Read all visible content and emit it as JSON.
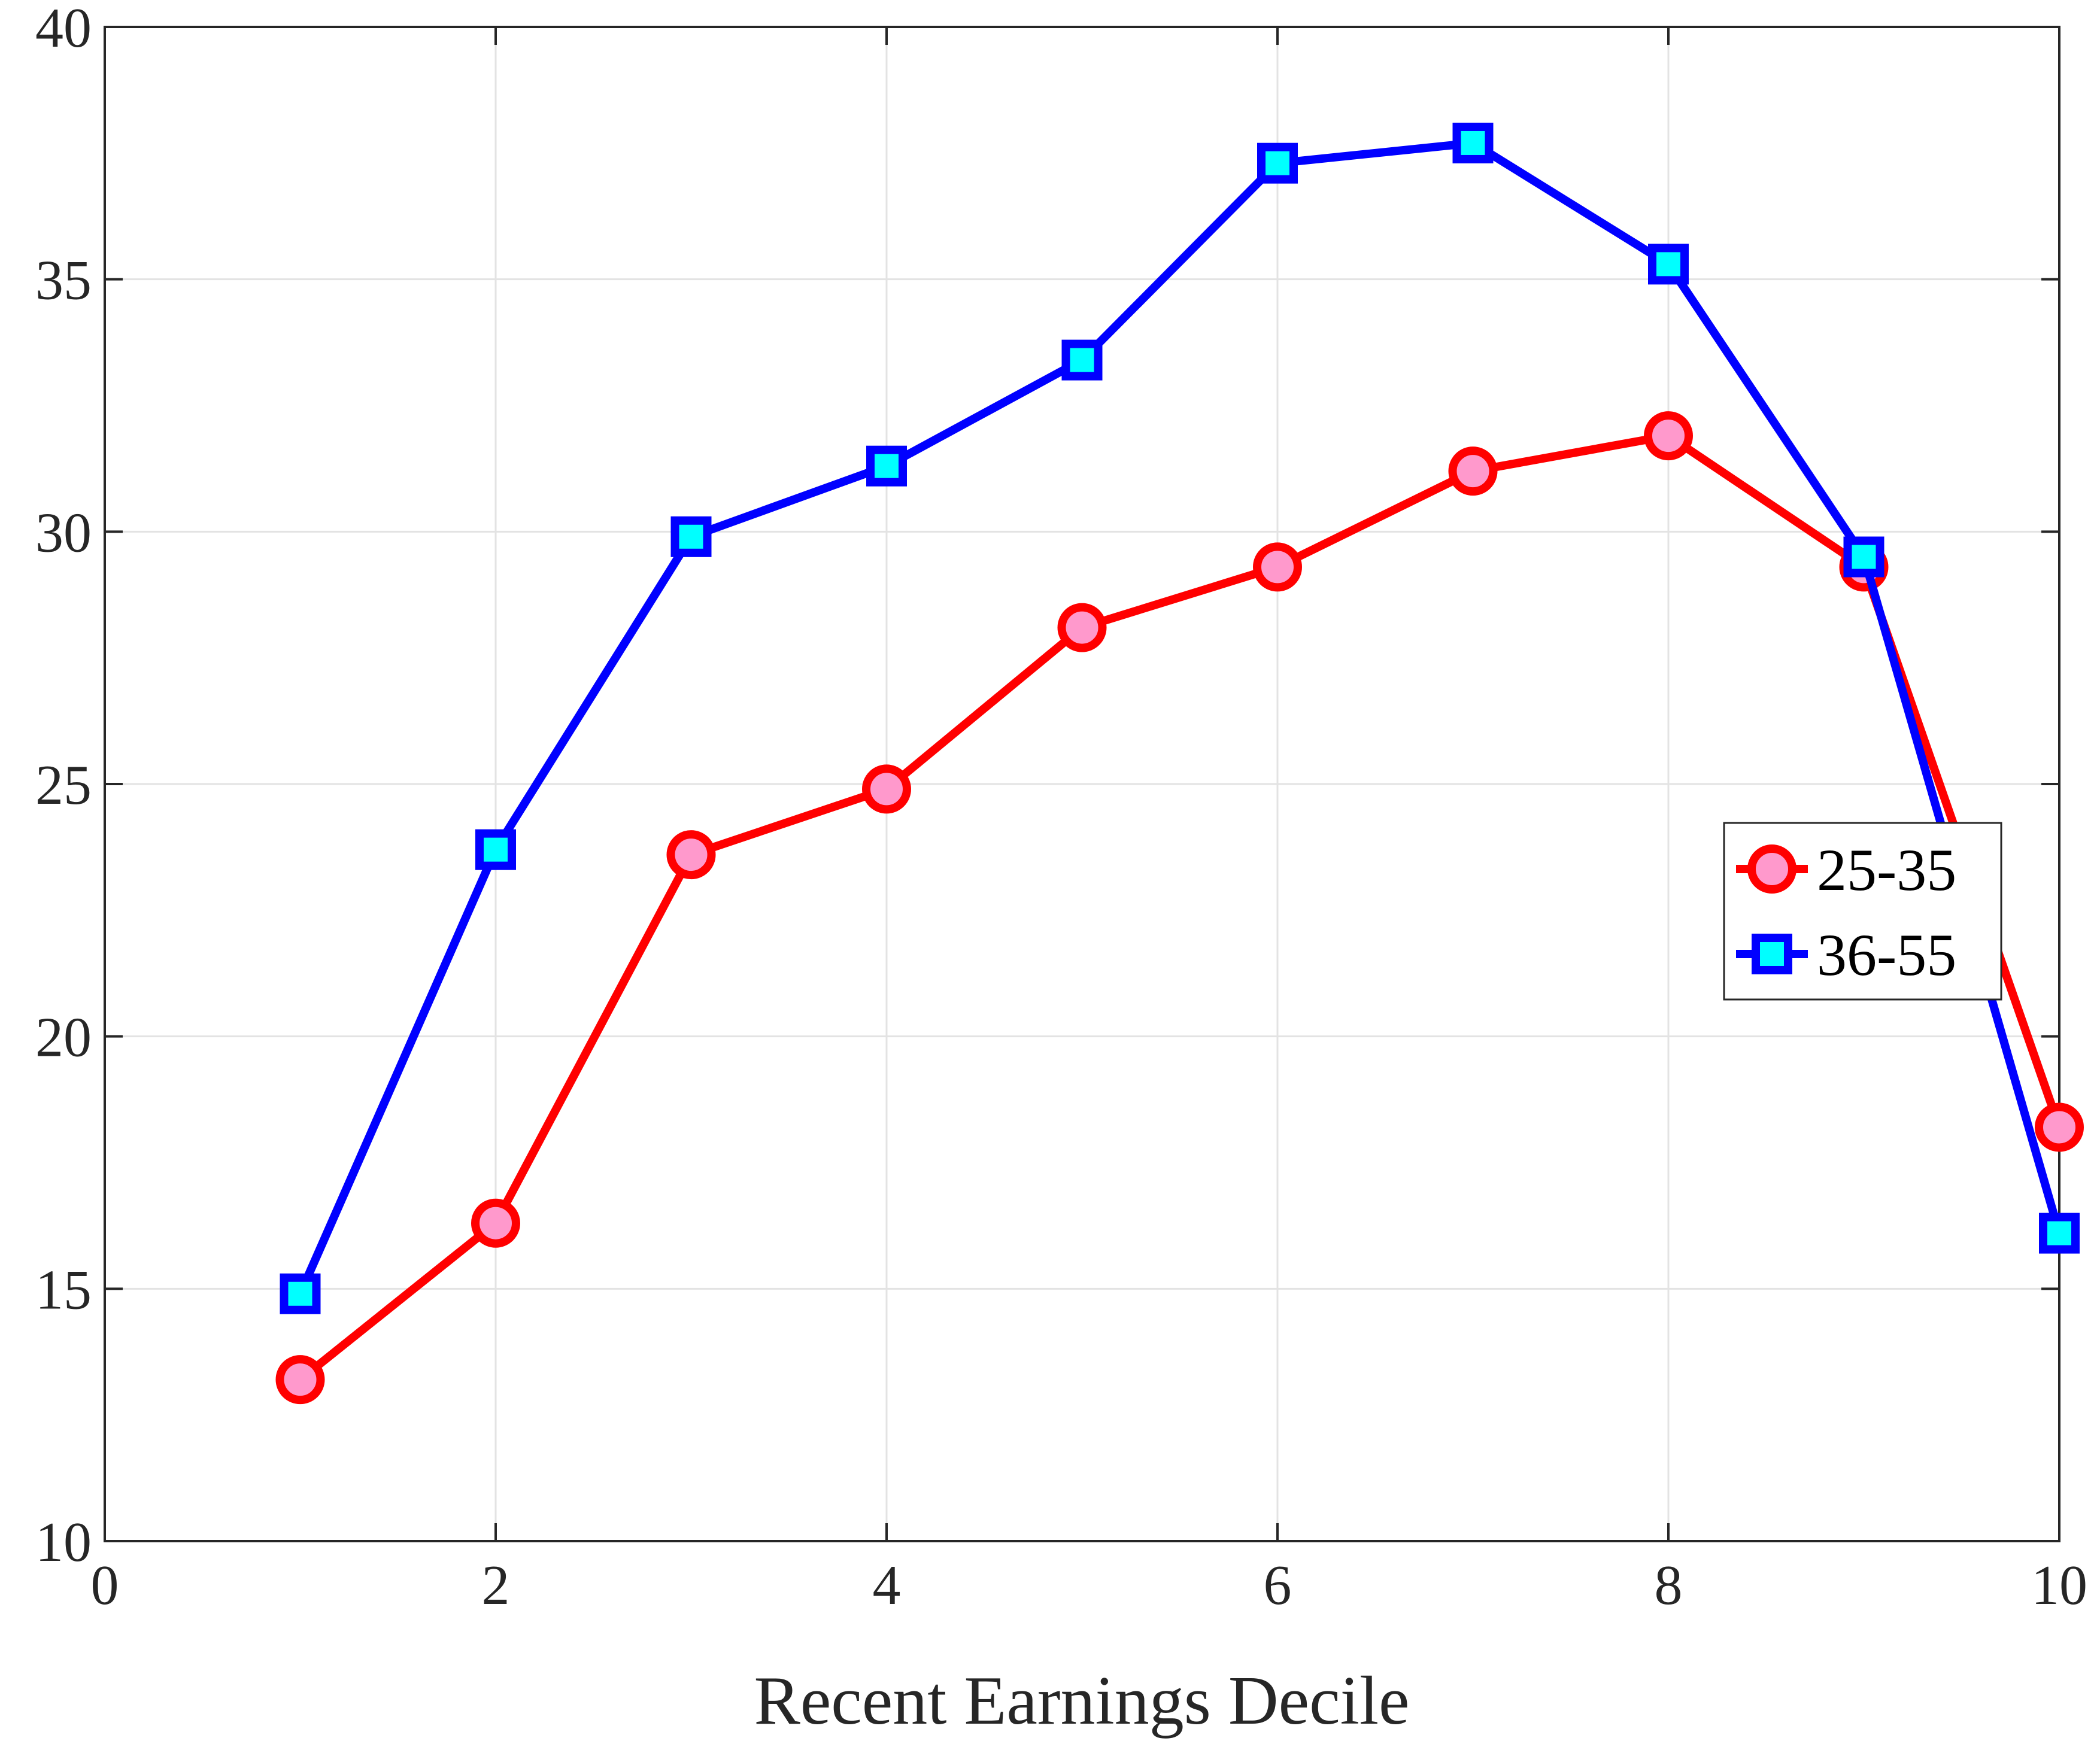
{
  "chart_data": {
    "type": "line",
    "title": "",
    "xlabel": "Recent Earnings Decile",
    "ylabel": "",
    "xlim": [
      0,
      10
    ],
    "ylim": [
      10,
      40
    ],
    "xticks": [
      0,
      2,
      4,
      6,
      8,
      10
    ],
    "yticks": [
      10,
      15,
      20,
      25,
      30,
      35,
      40
    ],
    "grid": true,
    "legend_position": "right",
    "x": [
      1,
      2,
      3,
      4,
      5,
      6,
      7,
      8,
      9,
      10
    ],
    "series": [
      {
        "name": "25-35",
        "values": [
          13.2,
          16.3,
          23.6,
          24.9,
          28.1,
          29.3,
          31.2,
          31.9,
          29.3,
          18.2
        ],
        "line_color": "#ff0000",
        "marker": "circle",
        "marker_fill": "#ff99cc"
      },
      {
        "name": "36-55",
        "values": [
          14.9,
          23.7,
          29.9,
          31.3,
          33.4,
          37.3,
          37.7,
          35.3,
          29.5,
          16.1
        ],
        "line_color": "#0000ff",
        "marker": "square",
        "marker_fill": "#00ffff"
      }
    ]
  }
}
